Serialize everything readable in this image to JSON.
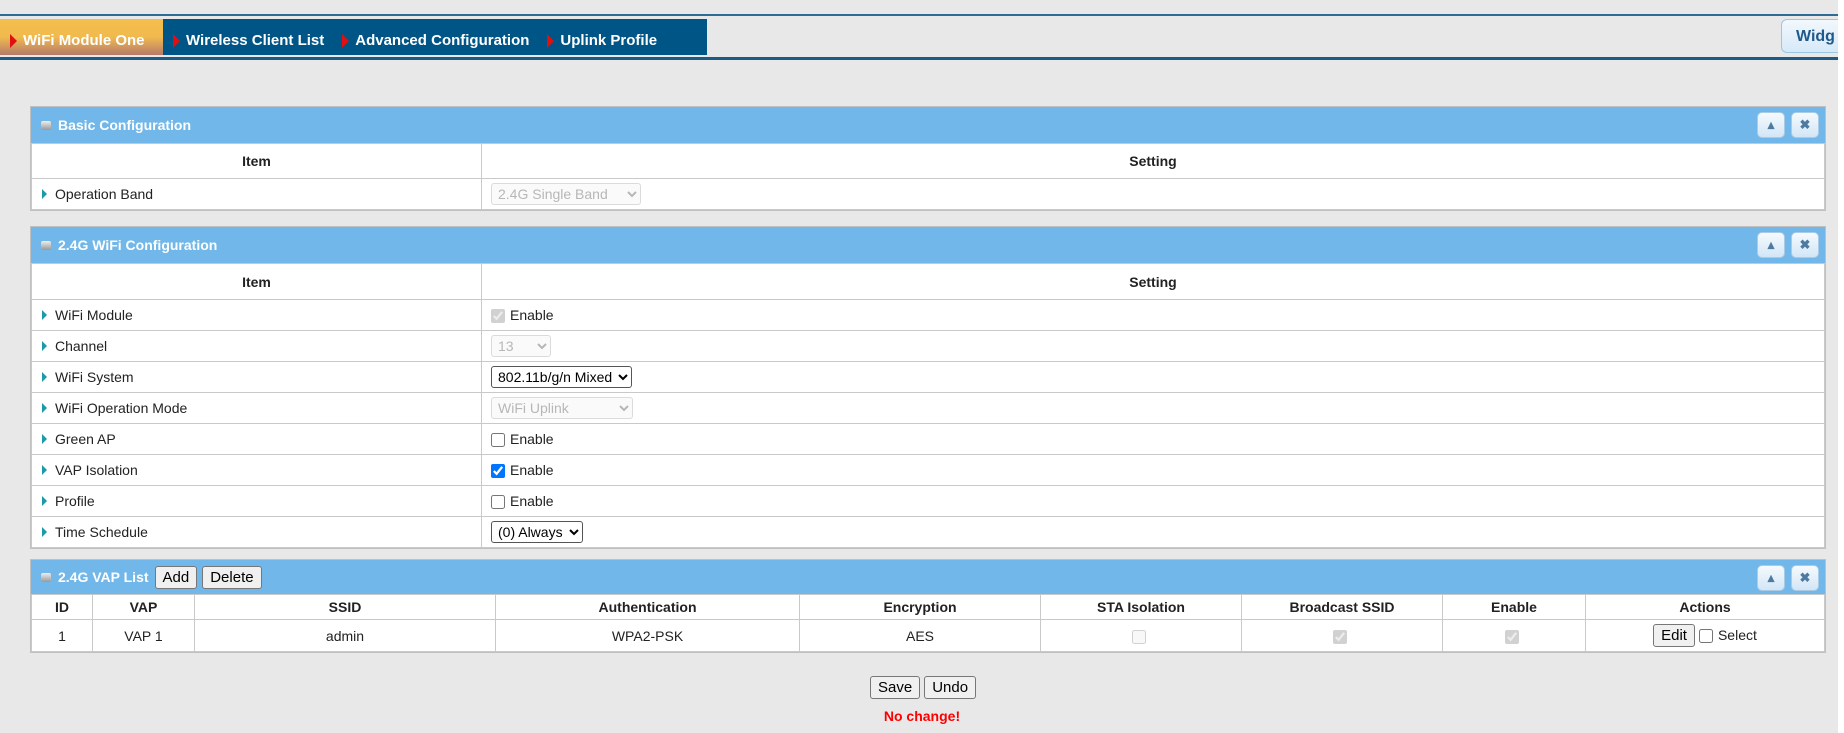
{
  "tabs": [
    {
      "label": "WiFi Module One",
      "active": true
    },
    {
      "label": "Wireless Client List"
    },
    {
      "label": "Advanced Configuration"
    },
    {
      "label": "Uplink Profile"
    }
  ],
  "widget_label": "Widg",
  "basic": {
    "title": "Basic Configuration",
    "col_item": "Item",
    "col_setting": "Setting",
    "operation_band": {
      "label": "Operation Band",
      "value": "2.4G Single Band",
      "disabled": true
    }
  },
  "wifi": {
    "title": "2.4G WiFi Configuration",
    "col_item": "Item",
    "col_setting": "Setting",
    "rows": [
      {
        "label": "WiFi Module",
        "type": "checkbox",
        "checked": true,
        "disabled": true,
        "text": "Enable"
      },
      {
        "label": "Channel",
        "type": "select",
        "value": "13",
        "disabled": true
      },
      {
        "label": "WiFi System",
        "type": "select",
        "value": "802.11b/g/n Mixed"
      },
      {
        "label": "WiFi Operation Mode",
        "type": "select",
        "value": "WiFi Uplink",
        "disabled": true
      },
      {
        "label": "Green AP",
        "type": "checkbox",
        "checked": false,
        "text": "Enable"
      },
      {
        "label": "VAP Isolation",
        "type": "checkbox",
        "checked": true,
        "text": "Enable"
      },
      {
        "label": "Profile",
        "type": "checkbox",
        "checked": false,
        "text": "Enable"
      },
      {
        "label": "Time Schedule",
        "type": "select",
        "value": "(0) Always"
      }
    ]
  },
  "vap": {
    "title": "2.4G VAP List",
    "add": "Add",
    "delete": "Delete",
    "columns": [
      "ID",
      "VAP",
      "SSID",
      "Authentication",
      "Encryption",
      "STA Isolation",
      "Broadcast SSID",
      "Enable",
      "Actions"
    ],
    "rows": [
      {
        "id": "1",
        "vap": "VAP 1",
        "ssid": "admin",
        "auth": "WPA2-PSK",
        "enc": "AES",
        "sta_isolation": false,
        "broadcast_ssid": true,
        "enable": true,
        "edit": "Edit",
        "select": "Select"
      }
    ]
  },
  "save": "Save",
  "undo": "Undo",
  "status": "No change!",
  "colors": {
    "tabbar": "#005587",
    "panel_header": "#71b7e9",
    "status": "#ff0000"
  }
}
